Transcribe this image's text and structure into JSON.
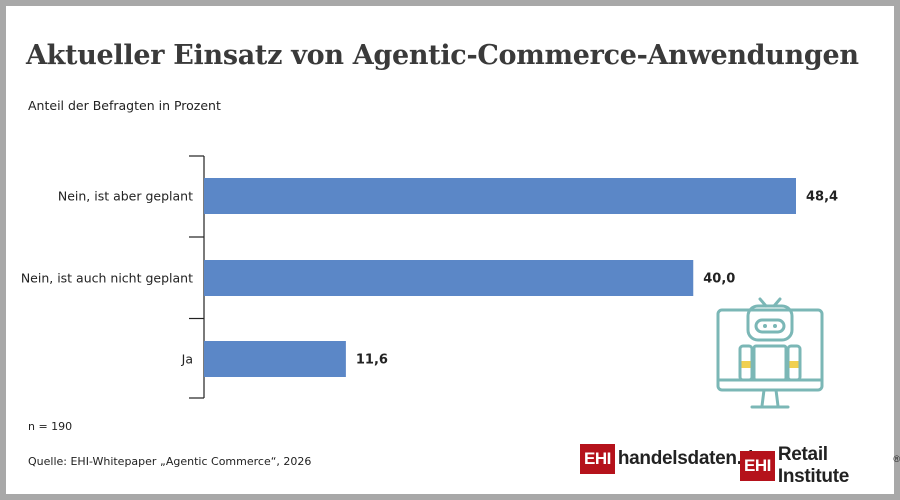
{
  "title": "Aktueller Einsatz von Agentic-Commerce-Anwendungen",
  "subtitle": "Anteil der Befragten in Prozent",
  "note": "n = 190",
  "source": "Quelle: EHI-Whitepaper „Agentic Commerce“, 2026",
  "logos": {
    "left": {
      "box": "EHI",
      "text": "handelsdaten.de"
    },
    "right": {
      "box": "EHI",
      "text": "Retail Institute",
      "reg": "®"
    }
  },
  "colors": {
    "bar": "#5b87c7",
    "brand": "#b5121b",
    "robot": "#7bb7b6",
    "robot_accent": "#f0d050"
  },
  "icons": [
    "robot-monitor-icon"
  ],
  "chart_data": {
    "type": "bar",
    "orientation": "horizontal",
    "categories": [
      "Nein, ist aber geplant",
      "Nein, ist auch nicht geplant",
      "Ja"
    ],
    "values": [
      48.4,
      40.0,
      11.6
    ],
    "value_labels": [
      "48,4",
      "40,0",
      "11,6"
    ],
    "title": "Aktueller Einsatz von Agentic-Commerce-Anwendungen",
    "xlabel": "",
    "ylabel": "",
    "xlim": [
      0,
      50
    ],
    "grid": false,
    "legend": "none"
  }
}
